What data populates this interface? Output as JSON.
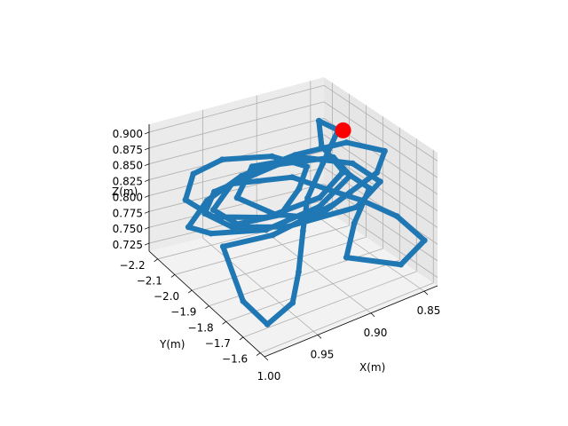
{
  "chart_data": {
    "type": "scatter",
    "projection": "3d",
    "title": "",
    "xlabel": "X(m)",
    "ylabel": "Y(m)",
    "zlabel": "Z(m)",
    "x_ticks": [
      "1.00",
      "0.95",
      "0.90",
      "0.85"
    ],
    "y_ticks": [
      "−1.6",
      "−1.7",
      "−1.8",
      "−1.9",
      "−2.0",
      "−2.1",
      "−2.2"
    ],
    "z_ticks": [
      "0.725",
      "0.750",
      "0.775",
      "0.800",
      "0.825",
      "0.850",
      "0.875",
      "0.900"
    ],
    "grid": true,
    "colors": {
      "trajectory": "#1f77b4",
      "marker": "#ff0000"
    },
    "series": [
      {
        "color": "#1f77b4",
        "points": [
          [
            0.86,
            -1.95,
            0.8
          ],
          [
            0.9,
            -1.9,
            0.79
          ],
          [
            0.93,
            -1.95,
            0.8
          ],
          [
            0.95,
            -2.05,
            0.815
          ],
          [
            0.92,
            -2.15,
            0.83
          ],
          [
            0.88,
            -2.1,
            0.835
          ],
          [
            0.85,
            -2.0,
            0.83
          ],
          [
            0.84,
            -1.9,
            0.815
          ],
          [
            0.87,
            -1.85,
            0.8
          ],
          [
            0.93,
            -1.88,
            0.795
          ],
          [
            0.97,
            -1.95,
            0.8
          ],
          [
            0.98,
            -2.05,
            0.805
          ],
          [
            0.96,
            -2.12,
            0.815
          ],
          [
            0.9,
            -2.12,
            0.83
          ],
          [
            0.86,
            -2.05,
            0.835
          ],
          [
            0.86,
            -1.95,
            0.825
          ],
          [
            0.9,
            -1.88,
            0.81
          ],
          [
            0.95,
            -1.88,
            0.8
          ],
          [
            0.99,
            -1.95,
            0.8
          ],
          [
            1.0,
            -2.02,
            0.8
          ],
          [
            0.97,
            -2.1,
            0.81
          ],
          [
            0.93,
            -2.15,
            0.82
          ],
          [
            0.88,
            -2.15,
            0.83
          ],
          [
            0.84,
            -2.1,
            0.84
          ],
          [
            0.82,
            -2.0,
            0.835
          ],
          [
            0.84,
            -1.92,
            0.825
          ],
          [
            0.89,
            -1.86,
            0.812
          ],
          [
            0.95,
            -1.84,
            0.8
          ],
          [
            0.99,
            -1.88,
            0.795
          ],
          [
            1.0,
            -1.7,
            0.76
          ],
          [
            0.99,
            -1.62,
            0.74
          ],
          [
            0.96,
            -1.66,
            0.745
          ],
          [
            0.94,
            -1.75,
            0.76
          ],
          [
            0.92,
            -1.85,
            0.79
          ],
          [
            0.9,
            -1.95,
            0.81
          ],
          [
            0.87,
            -2.05,
            0.83
          ],
          [
            0.84,
            -2.15,
            0.85
          ],
          [
            0.85,
            -2.2,
            0.86
          ],
          [
            0.86,
            -2.12,
            0.84
          ],
          [
            0.86,
            -2.0,
            0.825
          ],
          [
            0.85,
            -1.9,
            0.81
          ],
          [
            0.88,
            -1.8,
            0.79
          ],
          [
            0.9,
            -1.72,
            0.765
          ],
          [
            0.86,
            -1.65,
            0.745
          ],
          [
            0.83,
            -1.7,
            0.755
          ],
          [
            0.84,
            -1.8,
            0.78
          ],
          [
            0.86,
            -1.88,
            0.8
          ],
          [
            0.88,
            -1.96,
            0.812
          ],
          [
            0.9,
            -2.04,
            0.825
          ],
          [
            0.95,
            -2.08,
            0.83
          ],
          [
            0.98,
            -2.0,
            0.82
          ],
          [
            0.97,
            -1.92,
            0.81
          ],
          [
            0.93,
            -1.92,
            0.805
          ],
          [
            0.9,
            -2.0,
            0.815
          ],
          [
            0.88,
            -2.08,
            0.825
          ],
          [
            0.9,
            -2.16,
            0.835
          ],
          [
            0.94,
            -2.2,
            0.84
          ],
          [
            0.97,
            -2.18,
            0.835
          ],
          [
            0.99,
            -2.1,
            0.82
          ],
          [
            0.98,
            -2.0,
            0.81
          ],
          [
            0.94,
            -1.94,
            0.802
          ],
          [
            0.89,
            -1.94,
            0.808
          ],
          [
            0.86,
            -2.0,
            0.82
          ]
        ]
      }
    ],
    "markers": [
      {
        "x": 0.84,
        "y": -2.12,
        "z": 0.855,
        "color": "#ff0000"
      }
    ]
  }
}
